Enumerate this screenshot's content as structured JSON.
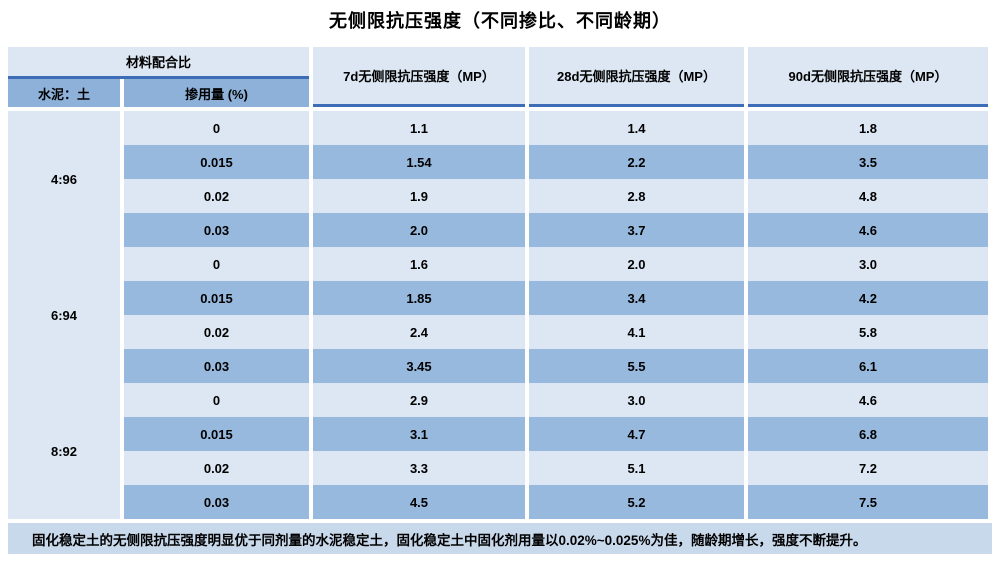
{
  "title": "无侧限抗压强度（不同掺比、不同龄期）",
  "header": {
    "group": "材料配合比",
    "ratio": "水泥：土",
    "dosage": "掺用量 (%)",
    "d7": "7d无侧限抗压强度（MP）",
    "d28": "28d无侧限抗压强度（MP）",
    "d90": "90d无侧限抗压强度（MP）"
  },
  "groups": [
    {
      "ratio": "4:96",
      "rows": [
        {
          "dosage": "0",
          "d7": "1.1",
          "d28": "1.4",
          "d90": "1.8"
        },
        {
          "dosage": "0.015",
          "d7": "1.54",
          "d28": "2.2",
          "d90": "3.5"
        },
        {
          "dosage": "0.02",
          "d7": "1.9",
          "d28": "2.8",
          "d90": "4.8"
        },
        {
          "dosage": "0.03",
          "d7": "2.0",
          "d28": "3.7",
          "d90": "4.6"
        }
      ]
    },
    {
      "ratio": "6:94",
      "rows": [
        {
          "dosage": "0",
          "d7": "1.6",
          "d28": "2.0",
          "d90": "3.0"
        },
        {
          "dosage": "0.015",
          "d7": "1.85",
          "d28": "3.4",
          "d90": "4.2"
        },
        {
          "dosage": "0.02",
          "d7": "2.4",
          "d28": "4.1",
          "d90": "5.8"
        },
        {
          "dosage": "0.03",
          "d7": "3.45",
          "d28": "5.5",
          "d90": "6.1"
        }
      ]
    },
    {
      "ratio": "8:92",
      "rows": [
        {
          "dosage": "0",
          "d7": "2.9",
          "d28": "3.0",
          "d90": "4.6"
        },
        {
          "dosage": "0.015",
          "d7": "3.1",
          "d28": "4.7",
          "d90": "6.8"
        },
        {
          "dosage": "0.02",
          "d7": "3.3",
          "d28": "5.1",
          "d90": "7.2"
        },
        {
          "dosage": "0.03",
          "d7": "4.5",
          "d28": "5.2",
          "d90": "7.5"
        }
      ]
    }
  ],
  "footer_note": "固化稳定土的无侧限抗压强度明显优于同剂量的水泥稳定土，固化稳定土中固化剂用量以0.02%~0.025%为佳，随龄期增长，强度不断提升。",
  "colors": {
    "row_light": "#dce7f3",
    "row_dark": "#97b9de",
    "subheader_bg": "#8db1d9",
    "header_border": "#3c6db6",
    "footer_bg": "#c9d9ec"
  },
  "chart_data": {
    "type": "table",
    "title": "无侧限抗压强度（不同掺比、不同龄期）",
    "columns": [
      "水泥：土",
      "掺用量 (%)",
      "7d无侧限抗压强度（MP）",
      "28d无侧限抗压强度（MP）",
      "90d无侧限抗压强度（MP）"
    ],
    "rows": [
      [
        "4:96",
        0,
        1.1,
        1.4,
        1.8
      ],
      [
        "4:96",
        0.015,
        1.54,
        2.2,
        3.5
      ],
      [
        "4:96",
        0.02,
        1.9,
        2.8,
        4.8
      ],
      [
        "4:96",
        0.03,
        2.0,
        3.7,
        4.6
      ],
      [
        "6:94",
        0,
        1.6,
        2.0,
        3.0
      ],
      [
        "6:94",
        0.015,
        1.85,
        3.4,
        4.2
      ],
      [
        "6:94",
        0.02,
        2.4,
        4.1,
        5.8
      ],
      [
        "6:94",
        0.03,
        3.45,
        5.5,
        6.1
      ],
      [
        "8:92",
        0,
        2.9,
        3.0,
        4.6
      ],
      [
        "8:92",
        0.015,
        3.1,
        4.7,
        6.8
      ],
      [
        "8:92",
        0.02,
        3.3,
        5.1,
        7.2
      ],
      [
        "8:92",
        0.03,
        4.5,
        5.2,
        7.5
      ]
    ],
    "note": "固化稳定土的无侧限抗压强度明显优于同剂量的水泥稳定土，固化稳定土中固化剂用量以0.02%~0.025%为佳，随龄期增长，强度不断提升。"
  }
}
